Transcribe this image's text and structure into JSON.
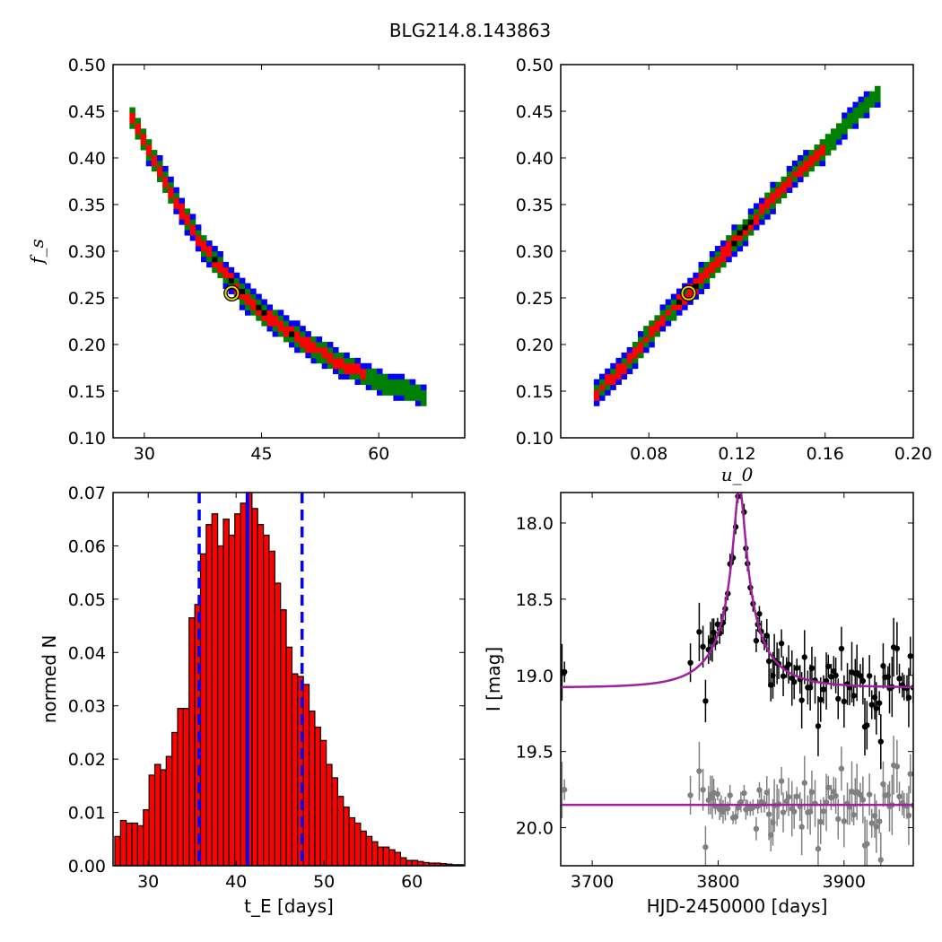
{
  "figure": {
    "title": "BLG214.8.143863"
  },
  "chart_data": [
    {
      "id": "tE_fs",
      "type": "heatmap",
      "xlabel": "",
      "ylabel": "f_s",
      "xlim": [
        26,
        71
      ],
      "ylim": [
        0.1,
        0.5
      ],
      "xticks": [
        "30",
        "45",
        "60"
      ],
      "xtick_values": [
        30,
        45,
        60
      ],
      "yticks": [
        "0.10",
        "0.15",
        "0.20",
        "0.25",
        "0.30",
        "0.35",
        "0.40",
        "0.45",
        "0.50"
      ],
      "ytick_values": [
        0.1,
        0.15,
        0.2,
        0.25,
        0.3,
        0.35,
        0.4,
        0.45,
        0.5
      ],
      "band_colors": {
        "outer": "#0000ff",
        "middle": "#008000",
        "inner": "#ff0000",
        "core": "#000000"
      },
      "ridge": {
        "x": [
          28,
          31,
          35,
          38,
          42,
          45,
          50,
          55,
          60,
          66
        ],
        "y": [
          0.45,
          0.4,
          0.34,
          0.3,
          0.26,
          0.235,
          0.205,
          0.18,
          0.16,
          0.145
        ]
      },
      "best_fit": {
        "x": 41.2,
        "y": 0.255
      }
    },
    {
      "id": "u0_fs",
      "type": "heatmap",
      "xlabel": "u_0",
      "ylabel": "",
      "xlim": [
        0.04,
        0.2
      ],
      "ylim": [
        0.1,
        0.5
      ],
      "xticks": [
        "0.08",
        "0.12",
        "0.16",
        "0.20"
      ],
      "xtick_values": [
        0.08,
        0.12,
        0.16,
        0.2
      ],
      "yticks": [
        "0.10",
        "0.15",
        "0.20",
        "0.25",
        "0.30",
        "0.35",
        "0.40",
        "0.45",
        "0.50"
      ],
      "ytick_values": [
        0.1,
        0.15,
        0.2,
        0.25,
        0.3,
        0.35,
        0.4,
        0.45,
        0.5
      ],
      "band_colors": {
        "outer": "#0000ff",
        "middle": "#008000",
        "inner": "#ff0000",
        "core": "#000000"
      },
      "ridge": {
        "x": [
          0.055,
          0.07,
          0.085,
          0.1,
          0.115,
          0.13,
          0.145,
          0.16,
          0.175,
          0.185
        ],
        "y": [
          0.145,
          0.18,
          0.225,
          0.26,
          0.3,
          0.34,
          0.38,
          0.41,
          0.45,
          0.47
        ]
      },
      "best_fit": {
        "x": 0.098,
        "y": 0.255
      }
    },
    {
      "id": "tE_hist",
      "type": "bar",
      "xlabel": "t_E [days]",
      "ylabel": "normed N",
      "xlim": [
        26,
        66
      ],
      "ylim": [
        0.0,
        0.07
      ],
      "xticks": [
        "30",
        "40",
        "50",
        "60"
      ],
      "xtick_values": [
        30,
        40,
        50,
        60
      ],
      "yticks": [
        "0.00",
        "0.01",
        "0.02",
        "0.03",
        "0.04",
        "0.05",
        "0.06",
        "0.07"
      ],
      "ytick_values": [
        0.0,
        0.01,
        0.02,
        0.03,
        0.04,
        0.05,
        0.06,
        0.07
      ],
      "bin_width": 0.65,
      "bin_start": 26.2,
      "values": [
        0.0055,
        0.0085,
        0.008,
        0.008,
        0.0075,
        0.0105,
        0.017,
        0.019,
        0.018,
        0.0205,
        0.025,
        0.0295,
        0.0295,
        0.0465,
        0.049,
        0.0585,
        0.064,
        0.066,
        0.06,
        0.065,
        0.062,
        0.066,
        0.068,
        0.07,
        0.067,
        0.064,
        0.062,
        0.059,
        0.053,
        0.048,
        0.041,
        0.036,
        0.0355,
        0.034,
        0.029,
        0.026,
        0.0235,
        0.019,
        0.0165,
        0.013,
        0.011,
        0.009,
        0.008,
        0.0065,
        0.0055,
        0.0045,
        0.0035,
        0.0035,
        0.003,
        0.0025,
        0.0015,
        0.001,
        0.001,
        0.0008,
        0.0006,
        0.0005,
        0.0005,
        0.0004,
        0.0003,
        0.0002,
        0.0002
      ],
      "bar_color": "#ff0000",
      "median": 41.3,
      "lower": 35.8,
      "upper": 47.5,
      "line_color": "#0000ff"
    },
    {
      "id": "lightcurve",
      "type": "scatter",
      "xlabel": "HJD-2450000 [days]",
      "ylabel": "I [mag]",
      "xlim": [
        3675,
        3955
      ],
      "ylim": [
        20.25,
        17.8
      ],
      "xticks": [
        "3700",
        "3800",
        "3900"
      ],
      "xtick_values": [
        3700,
        3800,
        3900
      ],
      "yticks": [
        "18.0",
        "18.5",
        "19.0",
        "19.5",
        "20.0"
      ],
      "ytick_values": [
        18.0,
        18.5,
        19.0,
        19.5,
        20.0
      ],
      "model": {
        "baseline": 19.08,
        "peak_mag": 17.78,
        "t0": 3817,
        "tE": 41.2,
        "u0": 0.098,
        "fs": 0.255,
        "color": "#a020a0"
      },
      "residual_baseline": 19.85,
      "data_color": "#000000",
      "residual_color": "#808080"
    }
  ]
}
